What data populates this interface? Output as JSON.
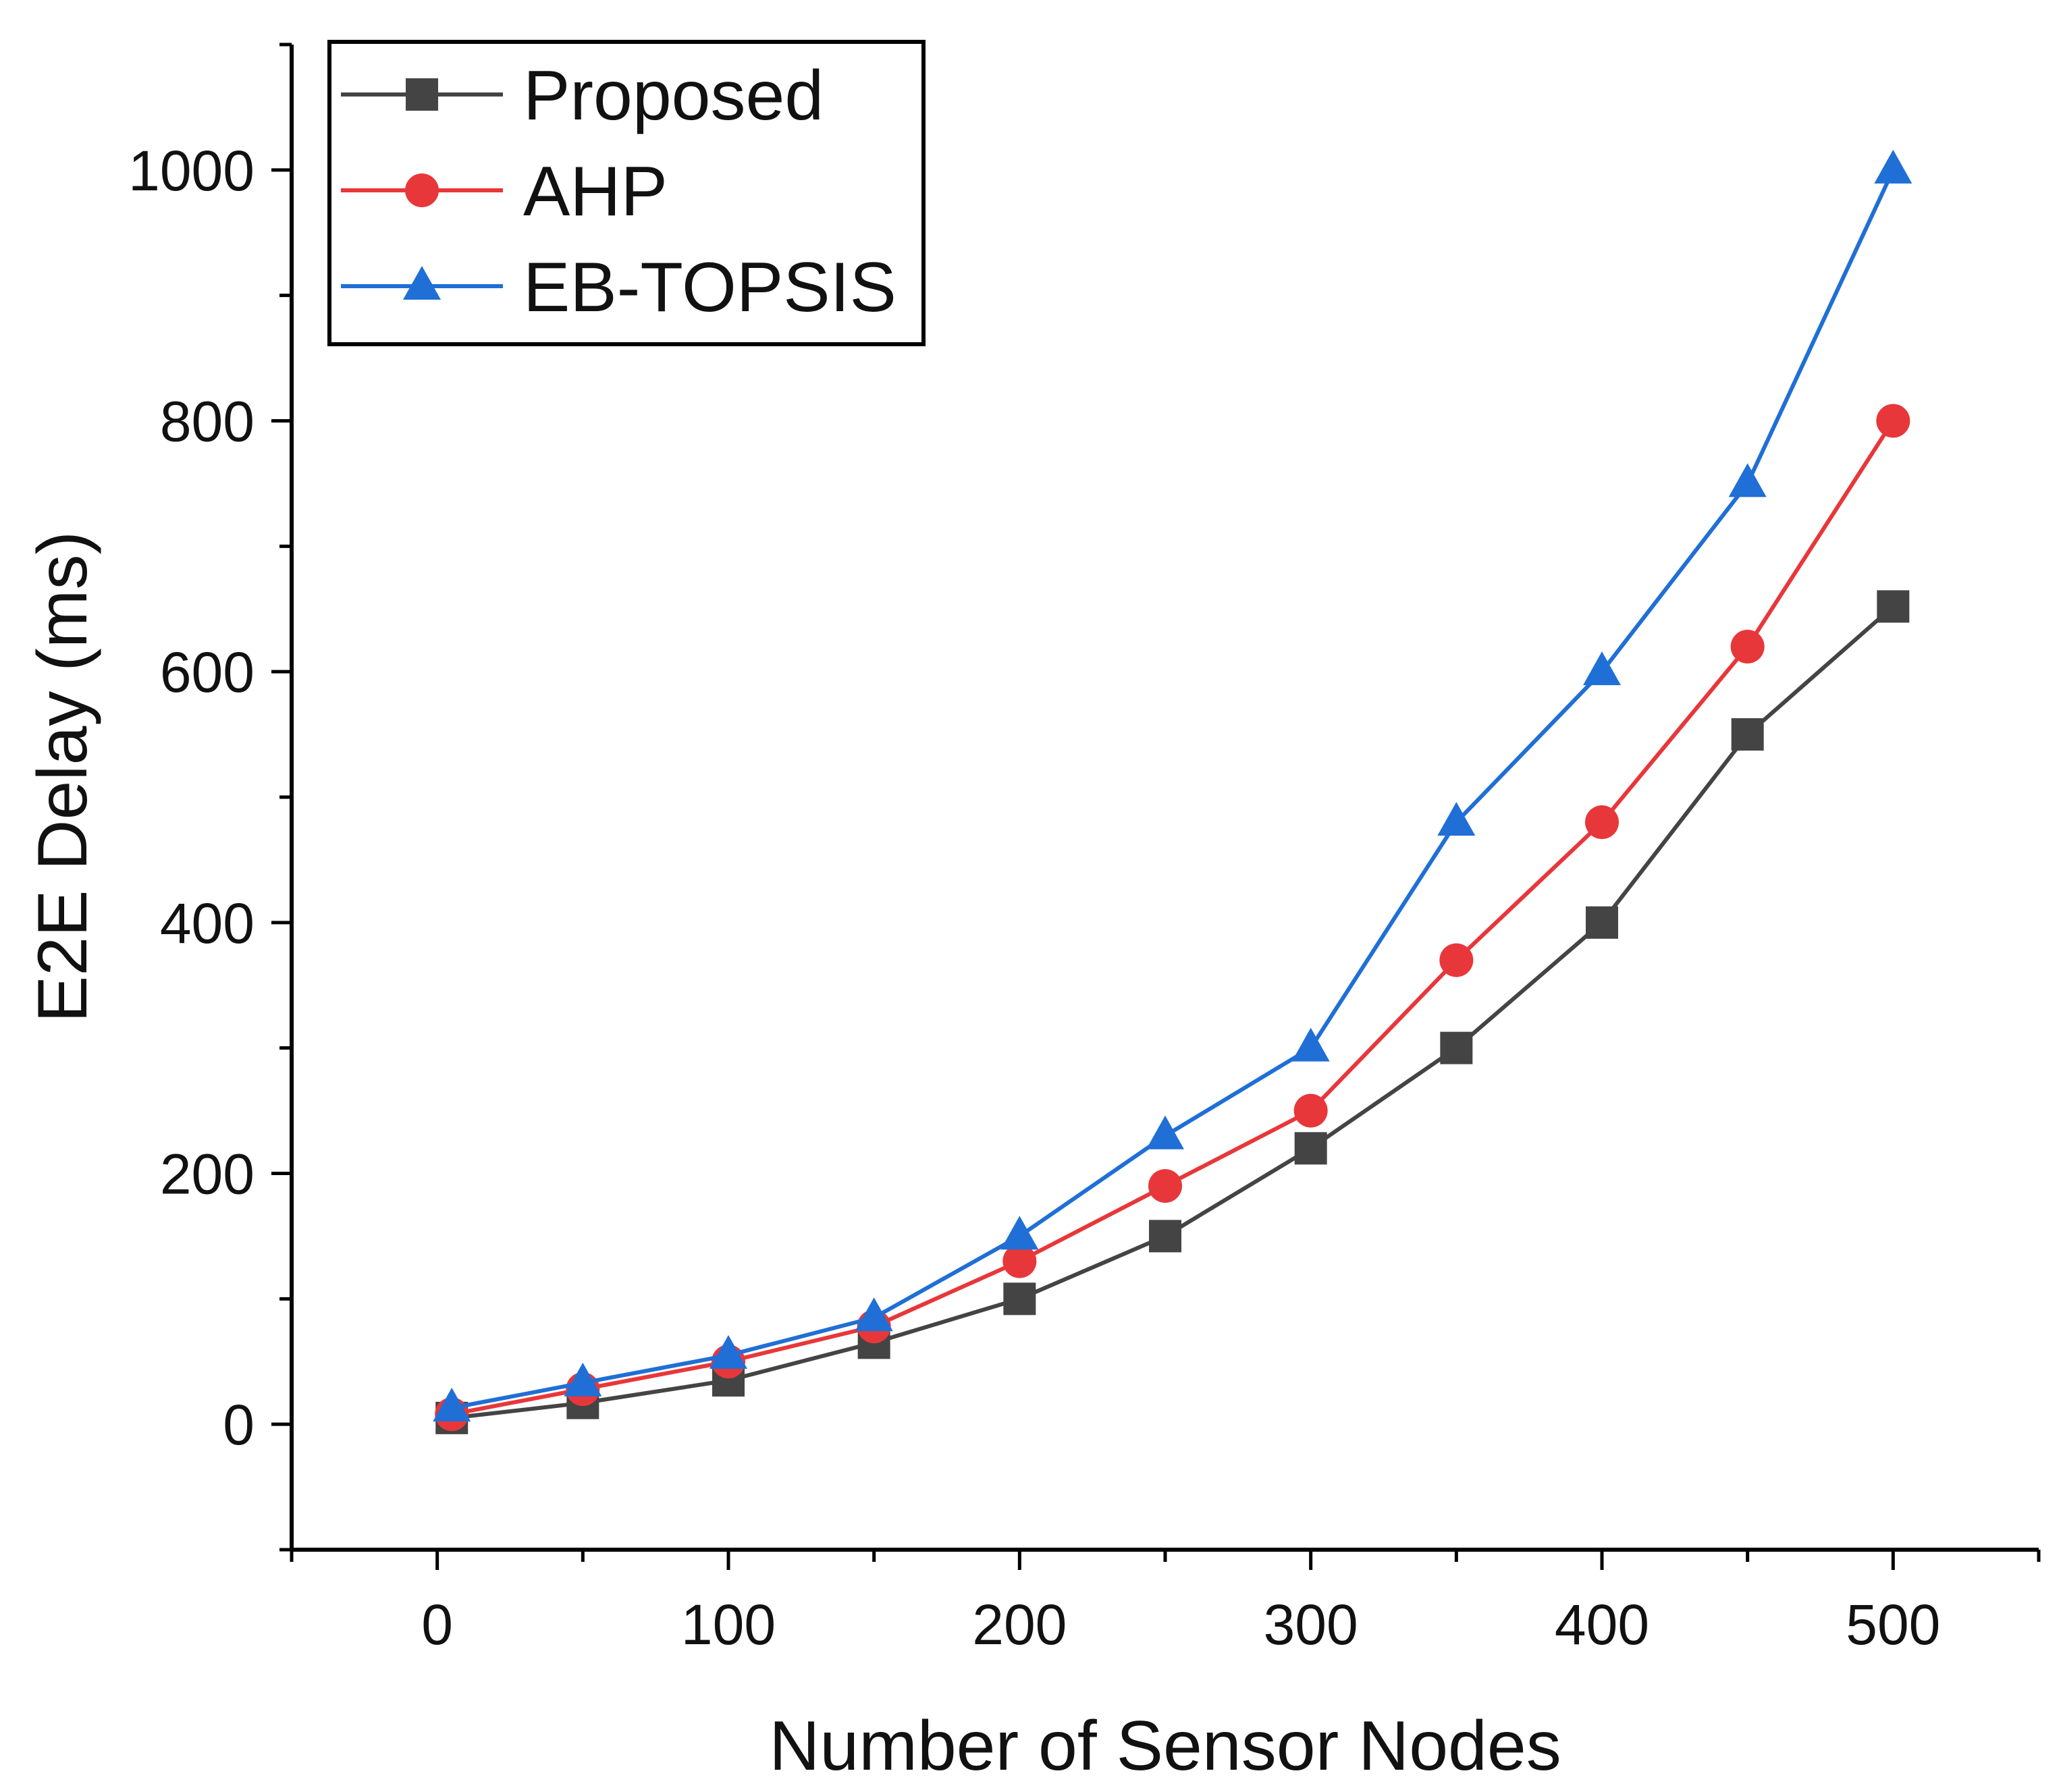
{
  "chart_data": {
    "type": "line",
    "title": "",
    "xlabel": "Number of Sensor Nodes",
    "ylabel": "E2E Delay (ms)",
    "xlim": [
      -50,
      550
    ],
    "ylim": [
      -100,
      1100
    ],
    "x_ticks": [
      0,
      100,
      200,
      300,
      400,
      500
    ],
    "x_tick_labels": [
      "0",
      "100",
      "200",
      "300",
      "400",
      "500"
    ],
    "y_ticks": [
      0,
      200,
      400,
      600,
      800,
      1000
    ],
    "y_tick_labels": [
      "0",
      "200",
      "400",
      "600",
      "800",
      "1000"
    ],
    "grid": false,
    "legend_position": "top-left",
    "x": [
      5,
      50,
      100,
      150,
      200,
      250,
      300,
      350,
      400,
      450,
      500
    ],
    "series": [
      {
        "name": "Proposed",
        "color": "#444444",
        "marker": "square",
        "values": [
          5,
          17,
          35,
          65,
          100,
          150,
          220,
          300,
          400,
          550,
          652
        ]
      },
      {
        "name": "AHP",
        "color": "#e8373a",
        "marker": "circle",
        "values": [
          8,
          28,
          50,
          78,
          130,
          190,
          250,
          370,
          480,
          620,
          800
        ]
      },
      {
        "name": "EB-TOPSIS",
        "color": "#1f6fd6",
        "marker": "triangle",
        "values": [
          13,
          33,
          55,
          85,
          150,
          230,
          300,
          480,
          600,
          750,
          1000
        ]
      }
    ]
  }
}
